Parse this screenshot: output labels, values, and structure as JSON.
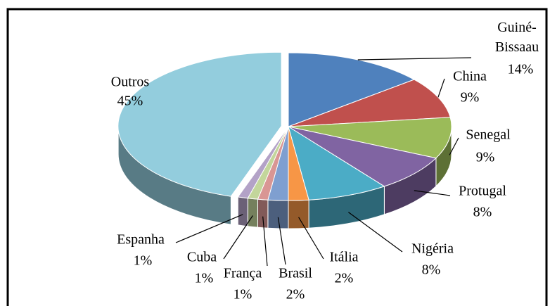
{
  "chart_data": {
    "type": "pie",
    "categories": [
      "Guiné-Bissaau",
      "China",
      "Senegal",
      "Protugal",
      "Nigéria",
      "Itália",
      "Brasil",
      "França",
      "Cuba",
      "Espanha",
      "Outros"
    ],
    "values": [
      14,
      9,
      9,
      8,
      8,
      2,
      2,
      1,
      1,
      1,
      45
    ],
    "value_labels": [
      "14%",
      "9%",
      "9%",
      "8%",
      "8%",
      "2%",
      "2%",
      "1%",
      "1%",
      "1%",
      "45%"
    ],
    "colors": [
      "#4f81bd",
      "#c0504d",
      "#9bbb59",
      "#8064a2",
      "#4bacc6",
      "#f79646",
      "#7f9fd0",
      "#d99694",
      "#c3d69b",
      "#b3a2c7",
      "#93cddd"
    ]
  }
}
